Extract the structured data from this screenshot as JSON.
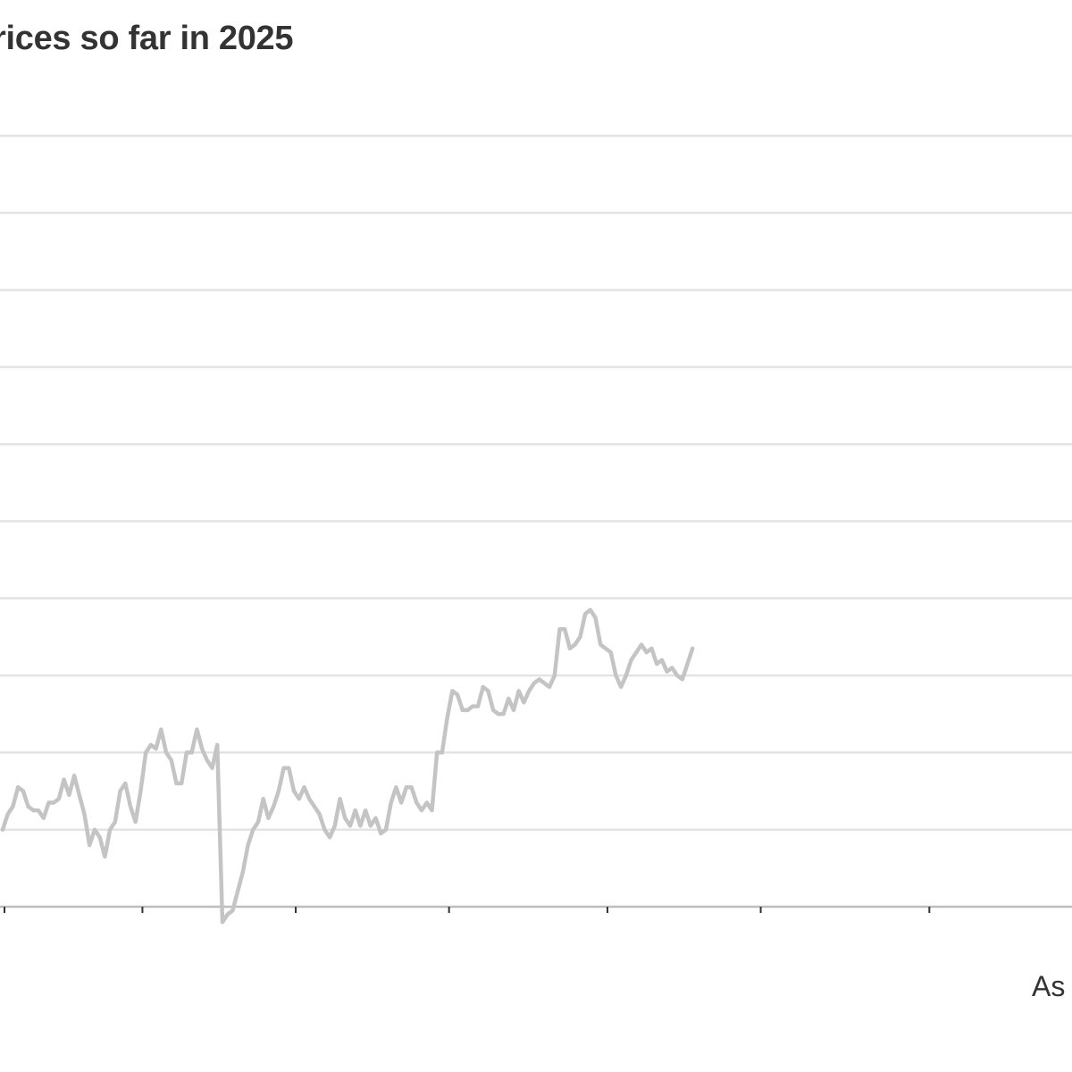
{
  "title": "rices so far in 2025",
  "footnote": "As o",
  "colors": {
    "line": "#c4c4c4",
    "grid": "#e3e3e3",
    "axis": "#bdbdbd",
    "tick": "#333333",
    "text": "#333333"
  },
  "chart_data": {
    "type": "line",
    "title": "rices so far in 2025",
    "xlabel": "",
    "ylabel": "",
    "grid": true,
    "ylim": [
      -1.0,
      9.0
    ],
    "gridlines": [
      0,
      1,
      2,
      3,
      4,
      5,
      6,
      7,
      8,
      9
    ],
    "x_ticks": [
      0,
      27,
      57,
      87,
      118,
      148,
      181,
      211
    ],
    "series": [
      {
        "values": [
          0.0,
          0.2,
          0.3,
          0.55,
          0.5,
          0.3,
          0.25,
          0.25,
          0.15,
          0.35,
          0.35,
          0.4,
          0.65,
          0.45,
          0.7,
          0.45,
          0.2,
          -0.2,
          0.0,
          -0.1,
          -0.35,
          0.0,
          0.1,
          0.5,
          0.6,
          0.3,
          0.1,
          0.5,
          1.0,
          1.1,
          1.05,
          1.3,
          1.0,
          0.9,
          0.6,
          0.6,
          1.0,
          1.0,
          1.3,
          1.05,
          0.9,
          0.8,
          1.1,
          -1.2,
          -1.1,
          -1.05,
          -0.8,
          -0.55,
          -0.2,
          0.0,
          0.1,
          0.4,
          0.15,
          0.3,
          0.5,
          0.8,
          0.8,
          0.5,
          0.4,
          0.55,
          0.4,
          0.3,
          0.2,
          0.0,
          -0.1,
          0.05,
          0.4,
          0.15,
          0.05,
          0.25,
          0.05,
          0.25,
          0.05,
          0.15,
          -0.05,
          0.0,
          0.35,
          0.55,
          0.35,
          0.55,
          0.55,
          0.35,
          0.25,
          0.35,
          0.25,
          1.0,
          1.0,
          1.45,
          1.8,
          1.75,
          1.55,
          1.55,
          1.6,
          1.6,
          1.85,
          1.8,
          1.55,
          1.5,
          1.5,
          1.7,
          1.55,
          1.8,
          1.65,
          1.8,
          1.9,
          1.95,
          1.9,
          1.85,
          2.0,
          2.6,
          2.6,
          2.35,
          2.4,
          2.5,
          2.8,
          2.85,
          2.75,
          2.4,
          2.35,
          2.3,
          2.0,
          1.85,
          2.0,
          2.2,
          2.3,
          2.4,
          2.3,
          2.35,
          2.15,
          2.2,
          2.05,
          2.1,
          2.0,
          1.95,
          2.15,
          2.35
        ]
      }
    ]
  }
}
